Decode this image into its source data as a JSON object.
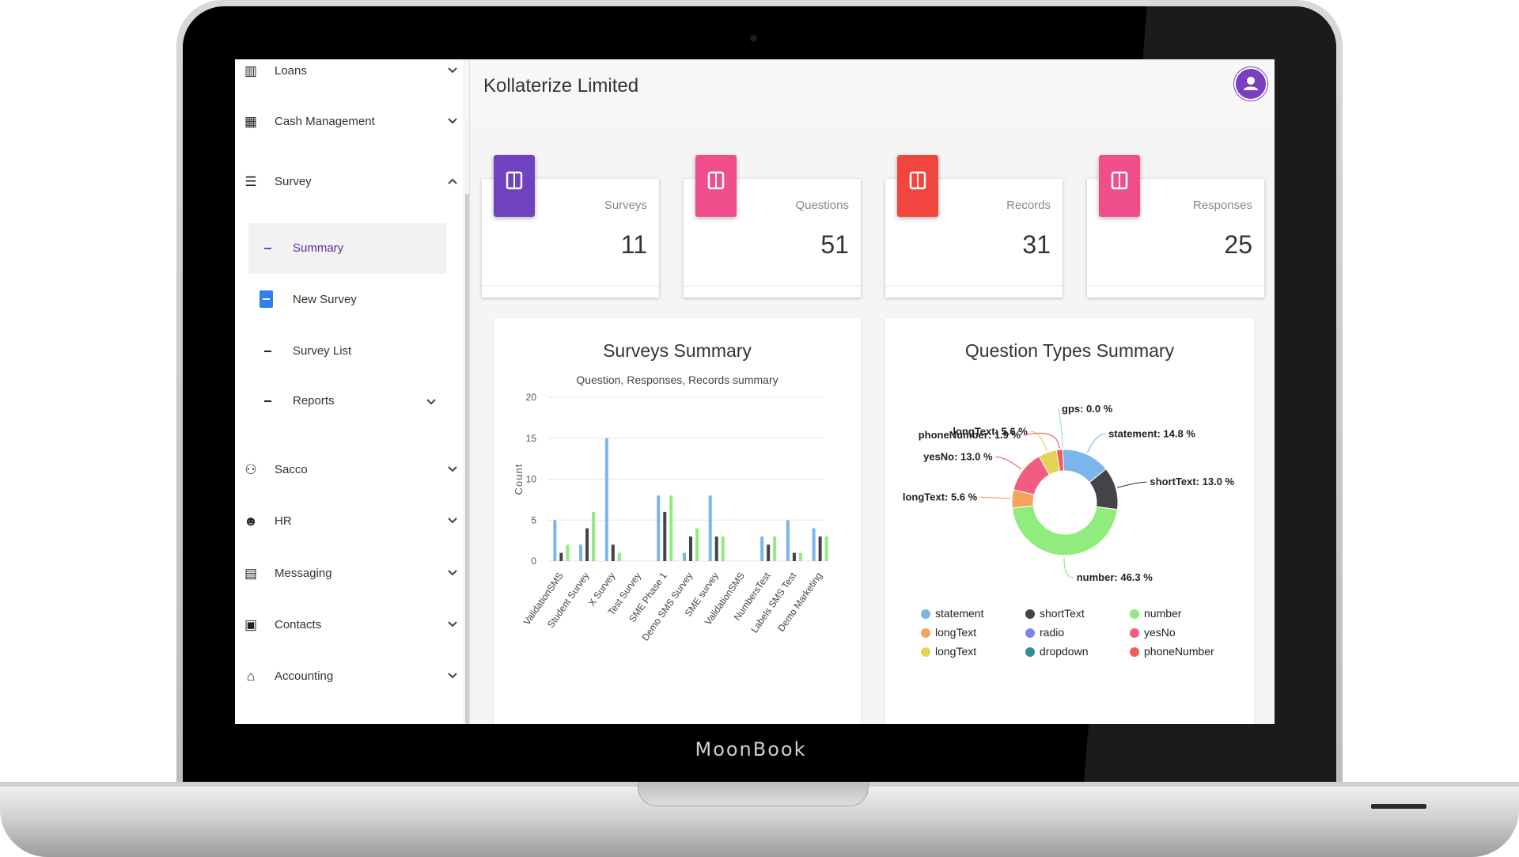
{
  "device": {
    "brand": "MoonBook"
  },
  "sidebar": {
    "items": [
      {
        "label": "Loans",
        "icon": "book-icon",
        "glyph": "▥"
      },
      {
        "label": "Cash Management",
        "icon": "calculator-icon",
        "glyph": "▦"
      },
      {
        "label": "Survey",
        "icon": "list-icon",
        "glyph": "☰"
      },
      {
        "label": "Sacco",
        "icon": "people-icon",
        "glyph": "⚇"
      },
      {
        "label": "HR",
        "icon": "face-icon",
        "glyph": "☻"
      },
      {
        "label": "Messaging",
        "icon": "message-icon",
        "glyph": "▤"
      },
      {
        "label": "Contacts",
        "icon": "contacts-icon",
        "glyph": "▣"
      },
      {
        "label": "Accounting",
        "icon": "bank-icon",
        "glyph": "⌂"
      }
    ],
    "survey_sub": [
      {
        "label": "Summary"
      },
      {
        "label": "New Survey"
      },
      {
        "label": "Survey List"
      },
      {
        "label": "Reports"
      }
    ]
  },
  "header": {
    "company": "Kollaterize Limited",
    "avatar_icon": "user-icon"
  },
  "stats": [
    {
      "label": "Surveys",
      "value": "11",
      "color": "#6f42c1"
    },
    {
      "label": "Questions",
      "value": "51",
      "color": "#f04e8a"
    },
    {
      "label": "Records",
      "value": "31",
      "color": "#f2453d"
    },
    {
      "label": "Responses",
      "value": "25",
      "color": "#f04e8a"
    }
  ],
  "chart_data": [
    {
      "type": "bar",
      "title": "Surveys Summary",
      "subtitle": "Question, Responses, Records summary",
      "ylabel": "Count",
      "ylim": [
        0,
        20
      ],
      "yticks": [
        0,
        5,
        10,
        15,
        20
      ],
      "categories": [
        "ValidationSMS",
        "Student Survey",
        "X Survey",
        "Test Survey",
        "SME Phase 1",
        "Demo SMS Survey",
        "SME survey",
        "ValidationSMS",
        "NumbersTest",
        "Labels SMS Test",
        "Demo Marketing"
      ],
      "series": [
        {
          "values": [
            5,
            2,
            15,
            0,
            8,
            1,
            8,
            0,
            3,
            5,
            4
          ],
          "color": "#7cb5ec"
        },
        {
          "values": [
            1,
            4,
            2,
            0,
            6,
            3,
            3,
            0,
            2,
            1,
            3
          ],
          "color": "#434348"
        },
        {
          "values": [
            2,
            6,
            1,
            0,
            8,
            4,
            3,
            0,
            3,
            1,
            3
          ],
          "color": "#90ed7d"
        }
      ]
    },
    {
      "type": "pie",
      "title": "Question Types Summary",
      "slices": [
        {
          "name": "statement",
          "label": "statement: 14.8 %",
          "value": 14.8,
          "color": "#7cb5ec"
        },
        {
          "name": "shortText",
          "label": "shortText: 13.0 %",
          "value": 13.0,
          "color": "#434348"
        },
        {
          "name": "number",
          "label": "number: 46.3 %",
          "value": 46.3,
          "color": "#90ed7d"
        },
        {
          "name": "longText",
          "label": "longText: 5.6 %",
          "value": 5.6,
          "color": "#f7a35c"
        },
        {
          "name": "radio",
          "label": "",
          "value": 0,
          "color": "#8085e9"
        },
        {
          "name": "yesNo",
          "label": "yesNo: 13.0 %",
          "value": 13.0,
          "color": "#f15c80"
        },
        {
          "name": "longText",
          "label": "longText: 5.6 %",
          "value": 5.6,
          "color": "#e4d354"
        },
        {
          "name": "dropdown",
          "label": "",
          "value": 0,
          "color": "#2b908f"
        },
        {
          "name": "phoneNumber",
          "label": "phoneNumber: 1.9 %",
          "value": 1.9,
          "color": "#f45b5b"
        },
        {
          "name": "gps",
          "label": "gps: 0.0 %",
          "value": 0.0,
          "color": "#91e8e1"
        }
      ],
      "legend": [
        "statement",
        "shortText",
        "number",
        "longText",
        "radio",
        "yesNo",
        "longText",
        "dropdown",
        "phoneNumber"
      ]
    }
  ]
}
